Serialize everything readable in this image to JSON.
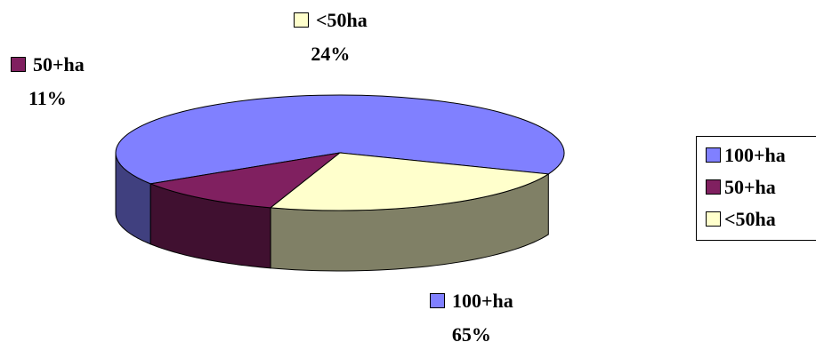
{
  "chart_data": {
    "type": "pie",
    "style": "3d",
    "title": "",
    "slices": [
      {
        "label": "100+ha",
        "value": 65,
        "value_label": "65%",
        "color": "#8080ff",
        "side_color": "#40407f"
      },
      {
        "label": "50+ha",
        "value": 11,
        "value_label": "11%",
        "color": "#802060",
        "side_color": "#401030"
      },
      {
        "label": "<50ha",
        "value": 24,
        "value_label": "24%",
        "color": "#ffffcc",
        "side_color": "#808066"
      }
    ],
    "legend": {
      "placement": "right",
      "entries": [
        "100+ha",
        "50+ha",
        "<50ha"
      ]
    }
  }
}
